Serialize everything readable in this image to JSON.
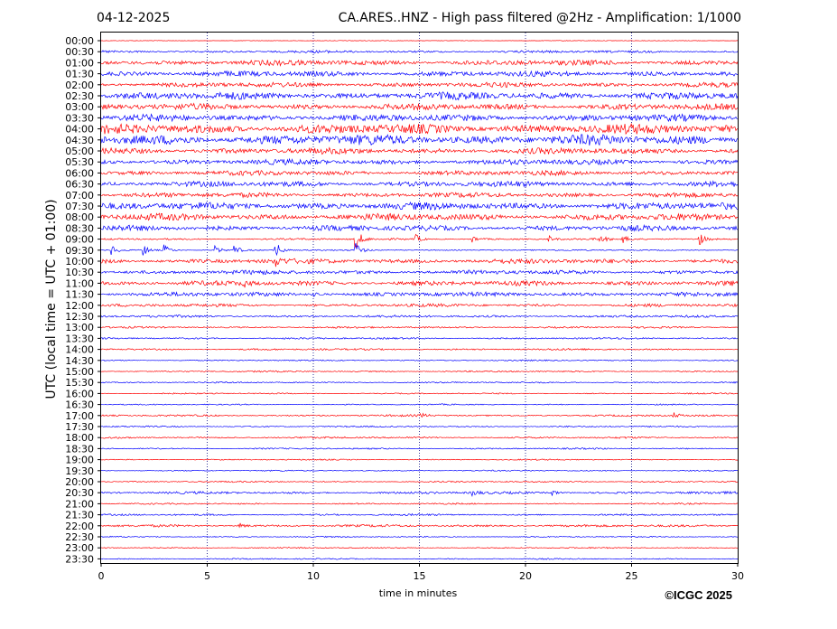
{
  "header": {
    "date": "04-12-2025",
    "title": "CA.ARES..HNZ - High pass filtered @2Hz - Amplification: 1/1000"
  },
  "footer": {
    "copyright": "©ICGC 2025"
  },
  "colors": {
    "red_trace": "#ff0000",
    "blue_trace": "#0000ff",
    "grid": "#000080",
    "axis": "#000000"
  },
  "chart_data": {
    "type": "line",
    "title": "CA.ARES..HNZ - High pass filtered @2Hz - Amplification: 1/1000",
    "xlabel": "time in minutes",
    "ylabel": "UTC (local time = UTC + 01:00)",
    "xlim": [
      0,
      30
    ],
    "x_ticks": [
      0,
      5,
      10,
      15,
      20,
      25,
      30
    ],
    "vertical_grid": true,
    "grid_style": "dotted",
    "row_labels": [
      "00:00",
      "00:30",
      "01:00",
      "01:30",
      "02:00",
      "02:30",
      "03:00",
      "03:30",
      "04:00",
      "04:30",
      "05:00",
      "05:30",
      "06:00",
      "06:30",
      "07:00",
      "07:30",
      "08:00",
      "08:30",
      "09:00",
      "09:30",
      "10:00",
      "10:30",
      "11:00",
      "11:30",
      "12:00",
      "12:30",
      "13:00",
      "13:30",
      "14:00",
      "14:30",
      "15:00",
      "15:30",
      "16:00",
      "16:30",
      "17:00",
      "17:30",
      "18:00",
      "18:30",
      "19:00",
      "19:30",
      "20:00",
      "20:30",
      "21:00",
      "21:30",
      "22:00",
      "22:30",
      "23:00",
      "23:30"
    ],
    "row_colors_pattern": [
      "red",
      "blue"
    ],
    "row_amplitude": [
      0.05,
      0.2,
      0.45,
      0.45,
      0.4,
      0.6,
      0.5,
      0.55,
      0.8,
      0.85,
      0.5,
      0.45,
      0.4,
      0.45,
      0.4,
      0.6,
      0.55,
      0.45,
      0.15,
      0.1,
      0.4,
      0.35,
      0.4,
      0.35,
      0.25,
      0.2,
      0.15,
      0.15,
      0.15,
      0.1,
      0.12,
      0.12,
      0.1,
      0.1,
      0.15,
      0.12,
      0.15,
      0.12,
      0.1,
      0.1,
      0.12,
      0.2,
      0.12,
      0.15,
      0.2,
      0.1,
      0.1,
      0.1
    ],
    "events": [
      {
        "row": "09:00",
        "minute": 12.0,
        "amplitude": 2.2
      },
      {
        "row": "09:00",
        "minute": 14.8,
        "amplitude": 0.9
      },
      {
        "row": "09:00",
        "minute": 17.5,
        "amplitude": 0.6
      },
      {
        "row": "09:00",
        "minute": 21.1,
        "amplitude": 0.6
      },
      {
        "row": "09:00",
        "minute": 23.5,
        "amplitude": 0.7
      },
      {
        "row": "09:00",
        "minute": 24.6,
        "amplitude": 0.6
      },
      {
        "row": "09:00",
        "minute": 28.2,
        "amplitude": 1.1
      },
      {
        "row": "09:30",
        "minute": 0.5,
        "amplitude": 0.9
      },
      {
        "row": "09:30",
        "minute": 2.0,
        "amplitude": 1.0
      },
      {
        "row": "09:30",
        "minute": 3.0,
        "amplitude": 1.0
      },
      {
        "row": "09:30",
        "minute": 5.4,
        "amplitude": 0.8
      },
      {
        "row": "09:30",
        "minute": 6.3,
        "amplitude": 0.9
      },
      {
        "row": "09:30",
        "minute": 8.2,
        "amplitude": 1.8
      },
      {
        "row": "09:30",
        "minute": 12.0,
        "amplitude": 1.4
      },
      {
        "row": "10:00",
        "minute": 8.2,
        "amplitude": 0.9
      },
      {
        "row": "11:00",
        "minute": 6.7,
        "amplitude": 0.6
      },
      {
        "row": "11:30",
        "minute": 10.0,
        "amplitude": 0.5
      },
      {
        "row": "17:00",
        "minute": 15.0,
        "amplitude": 0.5
      },
      {
        "row": "17:00",
        "minute": 27.0,
        "amplitude": 0.5
      },
      {
        "row": "20:30",
        "minute": 17.5,
        "amplitude": 0.6
      },
      {
        "row": "20:30",
        "minute": 21.3,
        "amplitude": 0.5
      },
      {
        "row": "22:00",
        "minute": 6.5,
        "amplitude": 0.5
      }
    ]
  }
}
